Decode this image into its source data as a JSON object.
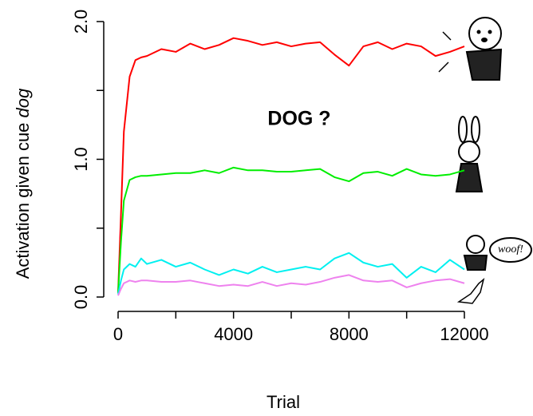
{
  "chart_data": {
    "type": "line",
    "ylabel": "Activation given cue",
    "ylabel_italic": "dog",
    "xlabel": "Trial",
    "annotations": [
      "DOG ?",
      "woof!"
    ],
    "xlim": [
      0,
      12000
    ],
    "ylim": [
      0,
      2
    ],
    "xticks": [
      0,
      4000,
      8000,
      12000
    ],
    "xminor_ticks": [
      2000,
      6000,
      10000
    ],
    "yticks": [
      {
        "value": 0,
        "label": "0.0"
      },
      {
        "value": 1,
        "label": "1.0"
      },
      {
        "value": 2,
        "label": "2.0"
      }
    ],
    "yminor_ticks": [
      0.5,
      1.5
    ],
    "x": [
      0,
      100,
      200,
      400,
      600,
      800,
      1000,
      1500,
      2000,
      2500,
      3000,
      3500,
      4000,
      4500,
      5000,
      5500,
      6000,
      6500,
      7000,
      7500,
      8000,
      8500,
      9000,
      9500,
      10000,
      10500,
      11000,
      11500,
      12000
    ],
    "series": [
      {
        "color": "#ff0000",
        "values": [
          0.03,
          0.6,
          1.2,
          1.6,
          1.72,
          1.74,
          1.75,
          1.8,
          1.78,
          1.84,
          1.8,
          1.83,
          1.88,
          1.86,
          1.83,
          1.85,
          1.82,
          1.84,
          1.85,
          1.76,
          1.68,
          1.82,
          1.85,
          1.8,
          1.84,
          1.82,
          1.75,
          1.78,
          1.82
        ]
      },
      {
        "color": "#00ee00",
        "values": [
          0.03,
          0.4,
          0.7,
          0.85,
          0.87,
          0.88,
          0.88,
          0.89,
          0.9,
          0.9,
          0.92,
          0.9,
          0.94,
          0.92,
          0.92,
          0.91,
          0.91,
          0.92,
          0.93,
          0.87,
          0.84,
          0.9,
          0.91,
          0.88,
          0.93,
          0.89,
          0.88,
          0.89,
          0.92
        ]
      },
      {
        "color": "#00f0f0",
        "values": [
          0.02,
          0.12,
          0.2,
          0.24,
          0.22,
          0.28,
          0.24,
          0.27,
          0.22,
          0.25,
          0.2,
          0.16,
          0.2,
          0.17,
          0.22,
          0.18,
          0.2,
          0.22,
          0.2,
          0.28,
          0.32,
          0.25,
          0.22,
          0.24,
          0.14,
          0.22,
          0.18,
          0.27,
          0.2
        ]
      },
      {
        "color": "#ee82ee",
        "values": [
          0.01,
          0.06,
          0.1,
          0.12,
          0.11,
          0.12,
          0.12,
          0.11,
          0.11,
          0.12,
          0.1,
          0.08,
          0.09,
          0.08,
          0.11,
          0.08,
          0.1,
          0.09,
          0.11,
          0.14,
          0.16,
          0.12,
          0.11,
          0.12,
          0.07,
          0.1,
          0.12,
          0.13,
          0.1
        ]
      }
    ]
  }
}
